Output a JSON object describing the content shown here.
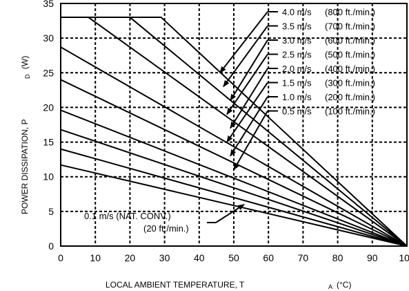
{
  "chart_data": {
    "type": "line",
    "title": "",
    "xlabel": "LOCAL AMBIENT TEMPERATURE, T",
    "xlabel_subscript": "A",
    "xlabel_unit": "(°C)",
    "ylabel": "POWER DISSIPATION, P",
    "ylabel_subscript": "D",
    "ylabel_unit": "(W)",
    "xlim": [
      0,
      100
    ],
    "ylim": [
      0,
      35
    ],
    "xticks": [
      0,
      10,
      20,
      30,
      40,
      50,
      60,
      70,
      80,
      90,
      100
    ],
    "yticks": [
      0,
      5,
      10,
      15,
      20,
      25,
      30,
      35
    ],
    "grid": true,
    "series": [
      {
        "name": "4.0 m/s (800 ft./min.)",
        "x": [
          0,
          29,
          100
        ],
        "y": [
          33,
          33,
          0
        ]
      },
      {
        "name": "3.5 m/s (700 ft./min.)",
        "x": [
          0,
          20,
          100
        ],
        "y": [
          33,
          33,
          0
        ]
      },
      {
        "name": "3.0 m/s (600 ft./min.)",
        "x": [
          0,
          8,
          100
        ],
        "y": [
          33,
          33,
          0
        ]
      },
      {
        "name": "2.5 m/s (500 ft./min.)",
        "x": [
          0,
          100
        ],
        "y": [
          28.7,
          0
        ]
      },
      {
        "name": "2.0 m/s (400 ft./min.)",
        "x": [
          0,
          100
        ],
        "y": [
          24,
          0
        ]
      },
      {
        "name": "1.5 m/s (300 ft./min.)",
        "x": [
          0,
          100
        ],
        "y": [
          19.6,
          0
        ]
      },
      {
        "name": "1.0 m/s (200 ft./min.)",
        "x": [
          0,
          100
        ],
        "y": [
          16.8,
          0
        ]
      },
      {
        "name": "0.5 m/s (100 ft./min.)",
        "x": [
          0,
          100
        ],
        "y": [
          14,
          0
        ]
      },
      {
        "name": "0.1 m/s (NAT. CONV.) (20 ft./min.)",
        "x": [
          0,
          100
        ],
        "y": [
          11.7,
          0
        ]
      }
    ],
    "annotations": [
      {
        "speed": "4.0 m/s",
        "rate": "(800 ft./min.)",
        "arrow_x": 46,
        "arrow_y": 25
      },
      {
        "speed": "3.5 m/s",
        "rate": "(700 ft./min.)",
        "arrow_x": 47,
        "arrow_y": 23
      },
      {
        "speed": "3.0 m/s",
        "rate": "(600 ft./min.)",
        "arrow_x": 49,
        "arrow_y": 21
      },
      {
        "speed": "2.5 m/s",
        "rate": "(500 ft./min.)",
        "arrow_x": 48,
        "arrow_y": 19
      },
      {
        "speed": "2.0 m/s",
        "rate": "(400 ft./min.)",
        "arrow_x": 49,
        "arrow_y": 17
      },
      {
        "speed": "1.5 m/s",
        "rate": "(300 ft./min.)",
        "arrow_x": 48,
        "arrow_y": 15
      },
      {
        "speed": "1.0 m/s",
        "rate": "(200 ft./min.)",
        "arrow_x": 49,
        "arrow_y": 13
      },
      {
        "speed": "0.5 m/s",
        "rate": "(100 ft./min.)",
        "arrow_x": 50,
        "arrow_y": 11
      }
    ],
    "bottom_annotation": {
      "line1": "0.1 m/s (NAT. CONV.)",
      "line2": "(20 ft./min.)",
      "arrow_x": 53,
      "arrow_y": 6
    }
  }
}
